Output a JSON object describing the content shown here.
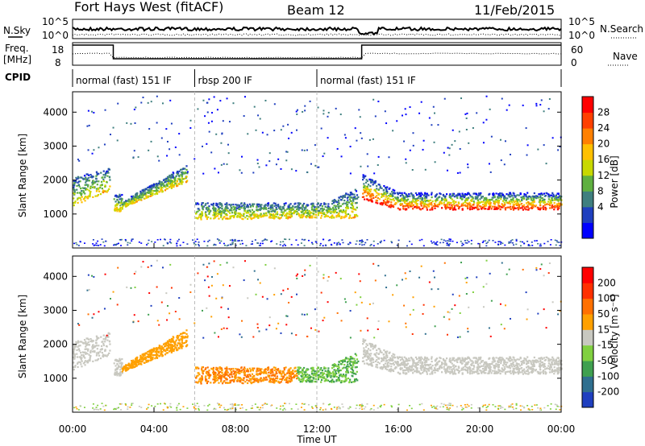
{
  "header": {
    "station": "Fort Hays West (fitACF)",
    "beam": "Beam 12",
    "date": "11/Feb/2015"
  },
  "top_panels": {
    "nsky_label": "N.Sky",
    "nsearch_label": "N.Search",
    "nsky_ticks": [
      "10^5",
      "10^0"
    ],
    "nsearch_ticks": [
      "10^5",
      "10^0"
    ],
    "freq_label_1": "Freq.",
    "freq_label_2": "[MHz]",
    "freq_ticks": [
      "18",
      "8"
    ],
    "nave_label": "Nave",
    "nave_ticks": [
      "60",
      "0"
    ],
    "cpid_label": "CPID",
    "cpid_segments": [
      {
        "label": "normal (fast) 151 IF",
        "start_h": 0,
        "end_h": 6
      },
      {
        "label": "rbsp 200 IF",
        "start_h": 6,
        "end_h": 12
      },
      {
        "label": "normal (fast) 151 IF",
        "start_h": 12,
        "end_h": 24
      }
    ]
  },
  "chart_data": [
    {
      "type": "heatmap",
      "name": "power",
      "ylabel": "Slant Range [km]",
      "xlabel": "Time UT",
      "xlim": [
        0,
        24
      ],
      "ylim": [
        0,
        4600
      ],
      "yticks": [
        "1000",
        "2000",
        "3000",
        "4000"
      ],
      "colorbar": {
        "label": "Power [dB]",
        "ticks": [
          "28",
          "24",
          "20",
          "16",
          "12",
          "8",
          "4"
        ],
        "colors": [
          "#0000ff",
          "#1f3fbf",
          "#3f7f7f",
          "#5fb040",
          "#c8d800",
          "#ffc000",
          "#ff8000",
          "#ff4000",
          "#ff0000"
        ]
      }
    },
    {
      "type": "heatmap",
      "name": "velocity",
      "ylabel": "Slant Range [km]",
      "xlabel": "Time UT",
      "xlim": [
        0,
        24
      ],
      "ylim": [
        0,
        4600
      ],
      "yticks": [
        "1000",
        "2000",
        "3000",
        "4000"
      ],
      "colorbar": {
        "label": "Velocity [m s⁻¹]",
        "ticks": [
          "200",
          "100",
          "50",
          "15",
          "-15",
          "-50",
          "-100",
          "-200"
        ],
        "colors": [
          "#1f3fbf",
          "#2f6f8f",
          "#3fa050",
          "#80d040",
          "#c8c8c0",
          "#ffa000",
          "#ff7000",
          "#ff3000",
          "#ff0000"
        ]
      }
    }
  ],
  "xaxis": {
    "label": "Time UT",
    "ticks": [
      "00:00",
      "04:00",
      "08:00",
      "12:00",
      "16:00",
      "20:00",
      "00:00"
    ]
  }
}
